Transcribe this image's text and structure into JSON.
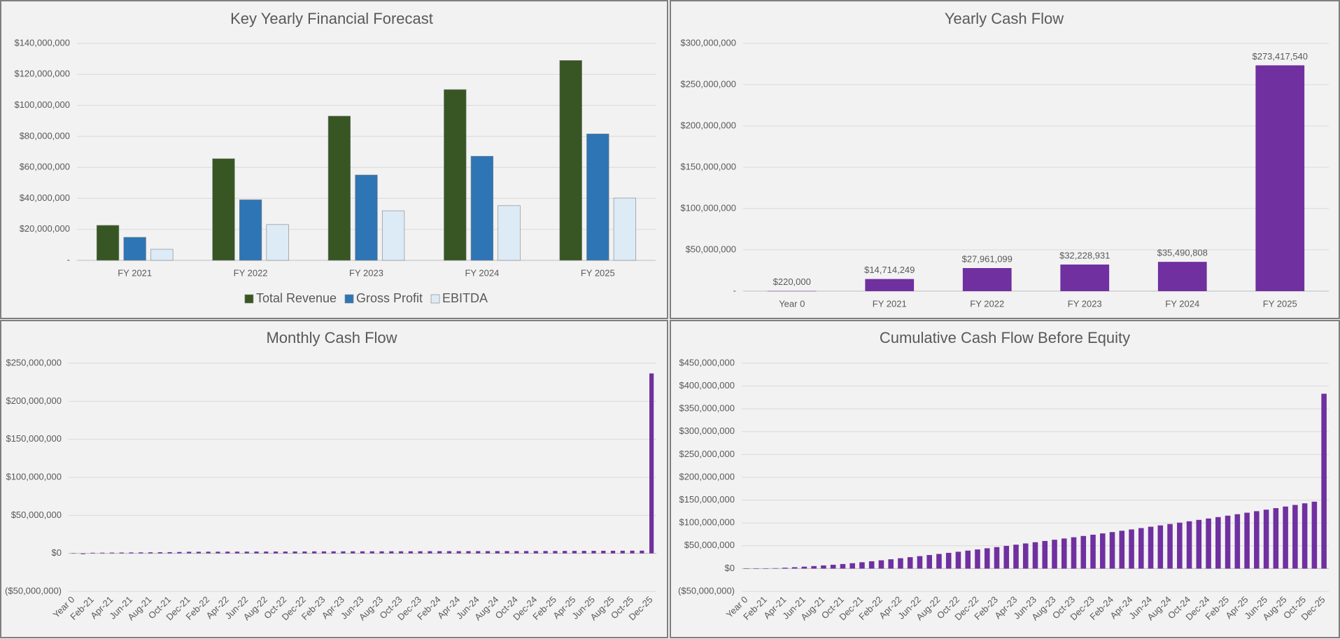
{
  "chart_data": [
    {
      "type": "bar",
      "title": "Key Yearly Financial Forecast",
      "categories": [
        "FY 2021",
        "FY 2022",
        "FY 2023",
        "FY 2024",
        "FY 2025"
      ],
      "series": [
        {
          "name": "Total Revenue",
          "color": "#375623",
          "values": [
            22600000,
            65600000,
            93100000,
            110200000,
            129000000
          ]
        },
        {
          "name": "Gross Profit",
          "color": "#2e75b6",
          "values": [
            14900000,
            39100000,
            55100000,
            67200000,
            81600000
          ]
        },
        {
          "name": "EBITDA",
          "color": "#ddebf7",
          "values": [
            7200000,
            23100000,
            32000000,
            35300000,
            40200000
          ]
        }
      ],
      "ylim": [
        0,
        140000000
      ],
      "yticks": [
        {
          "value": 0,
          "label": "-"
        },
        {
          "value": 20000000,
          "label": "$20,000,000"
        },
        {
          "value": 40000000,
          "label": "$40,000,000"
        },
        {
          "value": 60000000,
          "label": "$60,000,000"
        },
        {
          "value": 80000000,
          "label": "$80,000,000"
        },
        {
          "value": 100000000,
          "label": "$100,000,000"
        },
        {
          "value": 120000000,
          "label": "$120,000,000"
        },
        {
          "value": 140000000,
          "label": "$140,000,000"
        }
      ],
      "grid": true,
      "legend": "bottom"
    },
    {
      "type": "bar",
      "title": "Yearly Cash Flow",
      "categories": [
        "Year 0",
        "FY 2021",
        "FY 2022",
        "FY 2023",
        "FY 2024",
        "FY 2025"
      ],
      "values": [
        220000,
        14714249,
        27961099,
        32228931,
        35490808,
        273417540
      ],
      "value_labels": [
        "$220,000",
        "$14,714,249",
        "$27,961,099",
        "$32,228,931",
        "$35,490,808",
        "$273,417,540"
      ],
      "color": "#7030a0",
      "ylim": [
        0,
        300000000
      ],
      "yticks": [
        {
          "value": 0,
          "label": "-"
        },
        {
          "value": 50000000,
          "label": "$50,000,000"
        },
        {
          "value": 100000000,
          "label": "$100,000,000"
        },
        {
          "value": 150000000,
          "label": "$150,000,000"
        },
        {
          "value": 200000000,
          "label": "$200,000,000"
        },
        {
          "value": 250000000,
          "label": "$250,000,000"
        },
        {
          "value": 300000000,
          "label": "$300,000,000"
        }
      ],
      "grid": true
    },
    {
      "type": "bar",
      "title": "Monthly Cash Flow",
      "categories": [
        "Year 0",
        null,
        "Feb-21",
        null,
        "Apr-21",
        null,
        "Jun-21",
        null,
        "Aug-21",
        null,
        "Oct-21",
        null,
        "Dec-21",
        null,
        "Feb-22",
        null,
        "Apr-22",
        null,
        "Jun-22",
        null,
        "Aug-22",
        null,
        "Oct-22",
        null,
        "Dec-22",
        null,
        "Feb-23",
        null,
        "Apr-23",
        null,
        "Jun-23",
        null,
        "Aug-23",
        null,
        "Oct-23",
        null,
        "Dec-23",
        null,
        "Feb-24",
        null,
        "Apr-24",
        null,
        "Jun-24",
        null,
        "Aug-24",
        null,
        "Oct-24",
        null,
        "Dec-24",
        null,
        "Feb-25",
        null,
        "Apr-25",
        null,
        "Jun-25",
        null,
        "Aug-25",
        null,
        "Oct-25",
        null,
        "Dec-25"
      ],
      "values": [
        220000,
        -1000000,
        800000,
        900000,
        1000000,
        1100000,
        1200000,
        1300000,
        1400000,
        1500000,
        1600000,
        1800000,
        2100000,
        2100000,
        2200000,
        2200000,
        2300000,
        2300000,
        2300000,
        2400000,
        2400000,
        2400000,
        2400000,
        2500000,
        2500000,
        2600000,
        2600000,
        2650000,
        2650000,
        2700000,
        2700000,
        2700000,
        2700000,
        2750000,
        2750000,
        2750000,
        2800000,
        2850000,
        2900000,
        2900000,
        2900000,
        2950000,
        2950000,
        2950000,
        3000000,
        3000000,
        3000000,
        3050000,
        3050000,
        3100000,
        3150000,
        3200000,
        3250000,
        3300000,
        3350000,
        3400000,
        3450000,
        3500000,
        3550000,
        3600000,
        236600000
      ],
      "color": "#7030a0",
      "ylim": [
        -50000000,
        250000000
      ],
      "yticks": [
        {
          "value": -50000000,
          "label": "($50,000,000)"
        },
        {
          "value": 0,
          "label": "$0"
        },
        {
          "value": 50000000,
          "label": "$50,000,000"
        },
        {
          "value": 100000000,
          "label": "$100,000,000"
        },
        {
          "value": 150000000,
          "label": "$150,000,000"
        },
        {
          "value": 200000000,
          "label": "$200,000,000"
        },
        {
          "value": 250000000,
          "label": "$250,000,000"
        }
      ],
      "grid": true
    },
    {
      "type": "bar",
      "title": "Cumulative Cash Flow Before Equity",
      "categories": [
        "Year 0",
        null,
        "Feb-21",
        null,
        "Apr-21",
        null,
        "Jun-21",
        null,
        "Aug-21",
        null,
        "Oct-21",
        null,
        "Dec-21",
        null,
        "Feb-22",
        null,
        "Apr-22",
        null,
        "Jun-22",
        null,
        "Aug-22",
        null,
        "Oct-22",
        null,
        "Dec-22",
        null,
        "Feb-23",
        null,
        "Apr-23",
        null,
        "Jun-23",
        null,
        "Aug-23",
        null,
        "Oct-23",
        null,
        "Dec-23",
        null,
        "Feb-24",
        null,
        "Apr-24",
        null,
        "Jun-24",
        null,
        "Aug-24",
        null,
        "Oct-24",
        null,
        "Dec-24",
        null,
        "Feb-25",
        null,
        "Apr-25",
        null,
        "Jun-25",
        null,
        "Aug-25",
        null,
        "Oct-25",
        null,
        "Dec-25"
      ],
      "values": [
        220000,
        -780000,
        20000,
        920000,
        1920000,
        3020000,
        4220000,
        5520000,
        6920000,
        8420000,
        10020000,
        11820000,
        13920000,
        16020000,
        18220000,
        20420000,
        22720000,
        25020000,
        27320000,
        29720000,
        32120000,
        34520000,
        36920000,
        39420000,
        41920000,
        44520000,
        47120000,
        49770000,
        52420000,
        55120000,
        57820000,
        60520000,
        63220000,
        65970000,
        68720000,
        71470000,
        74270000,
        77120000,
        80020000,
        82920000,
        85820000,
        88770000,
        91720000,
        94670000,
        97670000,
        100670000,
        103670000,
        106720000,
        109770000,
        112870000,
        116020000,
        119220000,
        122470000,
        125770000,
        129120000,
        132520000,
        135970000,
        139470000,
        143020000,
        146620000,
        383220000
      ],
      "color": "#7030a0",
      "ylim": [
        -50000000,
        450000000
      ],
      "yticks": [
        {
          "value": -50000000,
          "label": "($50,000,000)"
        },
        {
          "value": 0,
          "label": "$0"
        },
        {
          "value": 50000000,
          "label": "$50,000,000"
        },
        {
          "value": 100000000,
          "label": "$100,000,000"
        },
        {
          "value": 150000000,
          "label": "$150,000,000"
        },
        {
          "value": 200000000,
          "label": "$200,000,000"
        },
        {
          "value": 250000000,
          "label": "$250,000,000"
        },
        {
          "value": 300000000,
          "label": "$300,000,000"
        },
        {
          "value": 350000000,
          "label": "$350,000,000"
        },
        {
          "value": 400000000,
          "label": "$400,000,000"
        },
        {
          "value": 450000000,
          "label": "$450,000,000"
        }
      ],
      "grid": true
    }
  ]
}
